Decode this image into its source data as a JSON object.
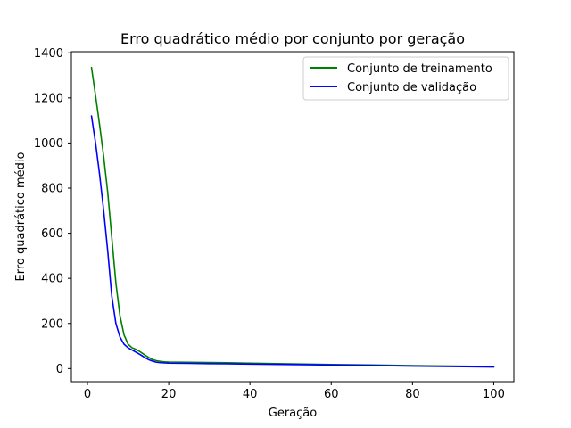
{
  "chart_data": {
    "type": "line",
    "title": "Erro quadrático médio por conjunto por geração",
    "xlabel": "Geração",
    "ylabel": "Erro quadrático médio",
    "xlim": [
      -3.95,
      104.95
    ],
    "ylim": [
      -58,
      1405
    ],
    "xticks": [
      0,
      20,
      40,
      60,
      80,
      100
    ],
    "yticks": [
      0,
      200,
      400,
      600,
      800,
      1000,
      1200,
      1400
    ],
    "grid": false,
    "legend_position": "top-right",
    "series": [
      {
        "name": "Conjunto de treinamento",
        "color": "#008000",
        "points": [
          [
            1,
            1335
          ],
          [
            2,
            1210
          ],
          [
            3,
            1080
          ],
          [
            4,
            940
          ],
          [
            5,
            780
          ],
          [
            6,
            580
          ],
          [
            7,
            380
          ],
          [
            8,
            235
          ],
          [
            9,
            150
          ],
          [
            10,
            108
          ],
          [
            11,
            92
          ],
          [
            12,
            85
          ],
          [
            13,
            74
          ],
          [
            14,
            62
          ],
          [
            15,
            50
          ],
          [
            16,
            40
          ],
          [
            17,
            35
          ],
          [
            18,
            32
          ],
          [
            19,
            30
          ],
          [
            20,
            29
          ],
          [
            25,
            28
          ],
          [
            30,
            27
          ],
          [
            40,
            24
          ],
          [
            50,
            21
          ],
          [
            60,
            18
          ],
          [
            70,
            16
          ],
          [
            80,
            13
          ],
          [
            90,
            11
          ],
          [
            100,
            9
          ]
        ]
      },
      {
        "name": "Conjunto de validação",
        "color": "#0000ff",
        "points": [
          [
            1,
            1120
          ],
          [
            2,
            1000
          ],
          [
            3,
            860
          ],
          [
            4,
            700
          ],
          [
            5,
            520
          ],
          [
            6,
            320
          ],
          [
            7,
            200
          ],
          [
            8,
            140
          ],
          [
            9,
            108
          ],
          [
            10,
            92
          ],
          [
            11,
            82
          ],
          [
            12,
            72
          ],
          [
            13,
            62
          ],
          [
            14,
            50
          ],
          [
            15,
            40
          ],
          [
            16,
            33
          ],
          [
            17,
            28
          ],
          [
            18,
            26
          ],
          [
            19,
            25
          ],
          [
            20,
            24
          ],
          [
            25,
            23
          ],
          [
            30,
            22
          ],
          [
            40,
            20
          ],
          [
            50,
            18
          ],
          [
            60,
            16
          ],
          [
            70,
            14
          ],
          [
            80,
            11
          ],
          [
            90,
            9
          ],
          [
            100,
            7
          ]
        ]
      }
    ]
  }
}
